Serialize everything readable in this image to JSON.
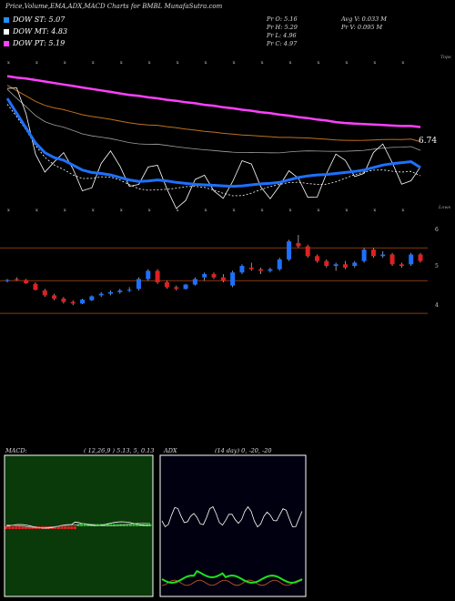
{
  "header": {
    "title": "Price,Volume,EMA,ADX,MACD Charts for BMBL MunafaSutra.com",
    "legend": [
      {
        "label": "DOW ST: 5.07",
        "color": "#1e90ff"
      },
      {
        "label": "DOW MT: 4.83",
        "color": "#ffffff"
      },
      {
        "label": "DOW PT: 5.19",
        "color": "#ff40ff"
      }
    ],
    "pr_open": "Pr O: 5.16",
    "pr_high": "Pr H: 5.29",
    "pr_low": "Pr L: 4.96",
    "pr_close": "Pr C: 4.97",
    "avg_vol": "Avg V: 0.033 M",
    "pr_vol": "Pr V: 0.095 M"
  },
  "price_panel": {
    "last_price_label": "6.74",
    "top_label": "Tops",
    "lows_label": "Lows",
    "colors": {
      "ema_short": "#1e70ff",
      "ema_pt": "#ff40ff",
      "ema_mid": "#c07020",
      "ema_long": "#a0a0a0",
      "price": "#ffffff"
    }
  },
  "candles_panel": {
    "axis_labels": [
      "6",
      "5",
      "4"
    ]
  },
  "macd": {
    "label": "MACD:",
    "params": "( 12,26,9 ) 5.13, 5, 0.13"
  },
  "adx": {
    "label": "ADX",
    "params": "(14 day) 0, -20, -20"
  },
  "chart_data": {
    "type": "line",
    "title": "Price,Volume,EMA,ADX,MACD Charts for BMBL MunafaSutra.com",
    "candles": [
      [
        5.0,
        5.05,
        4.95,
        5.02
      ],
      [
        5.05,
        5.1,
        5.0,
        5.04
      ],
      [
        5.02,
        5.05,
        4.9,
        4.92
      ],
      [
        4.9,
        4.95,
        4.7,
        4.72
      ],
      [
        4.7,
        4.75,
        4.5,
        4.55
      ],
      [
        4.55,
        4.6,
        4.4,
        4.45
      ],
      [
        4.45,
        4.5,
        4.3,
        4.35
      ],
      [
        4.35,
        4.4,
        4.25,
        4.3
      ],
      [
        4.3,
        4.45,
        4.28,
        4.42
      ],
      [
        4.4,
        4.55,
        4.38,
        4.52
      ],
      [
        4.55,
        4.65,
        4.5,
        4.6
      ],
      [
        4.6,
        4.7,
        4.55,
        4.65
      ],
      [
        4.65,
        4.75,
        4.6,
        4.7
      ],
      [
        4.7,
        4.8,
        4.65,
        4.72
      ],
      [
        4.75,
        5.1,
        4.7,
        5.05
      ],
      [
        5.05,
        5.35,
        5.0,
        5.3
      ],
      [
        5.3,
        5.35,
        4.9,
        4.95
      ],
      [
        4.95,
        5.0,
        4.75,
        4.8
      ],
      [
        4.8,
        4.85,
        4.7,
        4.75
      ],
      [
        4.75,
        4.9,
        4.72,
        4.88
      ],
      [
        4.88,
        5.1,
        4.85,
        5.05
      ],
      [
        5.1,
        5.25,
        5.0,
        5.2
      ],
      [
        5.2,
        5.25,
        5.05,
        5.1
      ],
      [
        5.1,
        5.2,
        4.95,
        5.0
      ],
      [
        4.85,
        5.3,
        4.8,
        5.25
      ],
      [
        5.25,
        5.5,
        5.2,
        5.45
      ],
      [
        5.4,
        5.55,
        5.3,
        5.35
      ],
      [
        5.35,
        5.4,
        5.2,
        5.3
      ],
      [
        5.3,
        5.4,
        5.25,
        5.35
      ],
      [
        5.35,
        5.7,
        5.3,
        5.65
      ],
      [
        5.65,
        6.25,
        5.6,
        6.2
      ],
      [
        6.15,
        6.4,
        6.0,
        6.05
      ],
      [
        6.05,
        6.1,
        5.7,
        5.75
      ],
      [
        5.75,
        5.8,
        5.55,
        5.6
      ],
      [
        5.6,
        5.65,
        5.4,
        5.45
      ],
      [
        5.45,
        5.55,
        5.3,
        5.5
      ],
      [
        5.5,
        5.6,
        5.35,
        5.4
      ],
      [
        5.45,
        5.6,
        5.4,
        5.55
      ],
      [
        5.6,
        6.0,
        5.55,
        5.95
      ],
      [
        5.95,
        6.0,
        5.7,
        5.75
      ],
      [
        5.75,
        5.9,
        5.7,
        5.8
      ],
      [
        5.8,
        5.85,
        5.45,
        5.5
      ],
      [
        5.5,
        5.55,
        5.4,
        5.45
      ],
      [
        5.5,
        5.85,
        5.45,
        5.8
      ],
      [
        5.8,
        5.85,
        5.55,
        5.6
      ]
    ],
    "ylim": [
      3.0,
      6.9
    ],
    "ema_short": [
      8.5,
      8.2,
      7.9,
      7.6,
      7.4,
      7.3,
      7.25,
      7.15,
      7.05,
      7.0,
      6.98,
      6.95,
      6.9,
      6.85,
      6.82,
      6.83,
      6.85,
      6.83,
      6.8,
      6.78,
      6.76,
      6.75,
      6.74,
      6.73,
      6.72,
      6.73,
      6.75,
      6.77,
      6.78,
      6.8,
      6.85,
      6.9,
      6.93,
      6.95,
      6.96,
      6.98,
      7.0,
      7.02,
      7.05,
      7.1,
      7.15,
      7.18,
      7.2,
      7.22,
      7.1
    ],
    "ema_pt": [
      8.95,
      8.92,
      8.9,
      8.87,
      8.84,
      8.81,
      8.78,
      8.75,
      8.72,
      8.69,
      8.66,
      8.63,
      8.6,
      8.57,
      8.55,
      8.52,
      8.5,
      8.47,
      8.45,
      8.42,
      8.4,
      8.37,
      8.35,
      8.32,
      8.3,
      8.27,
      8.25,
      8.22,
      8.2,
      8.17,
      8.15,
      8.12,
      8.1,
      8.07,
      8.05,
      8.02,
      8.0,
      7.99,
      7.98,
      7.97,
      7.96,
      7.95,
      7.94,
      7.94,
      7.92
    ]
  }
}
